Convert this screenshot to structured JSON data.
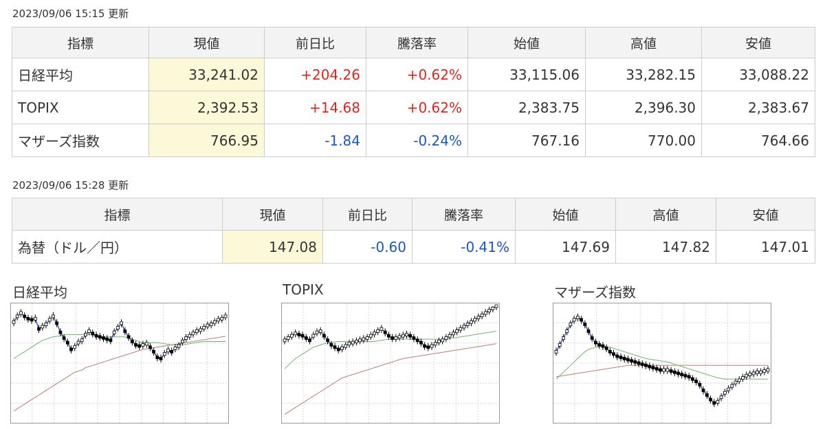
{
  "stock_table": {
    "timestamp": "2023/09/06 15:15 更新",
    "headers": [
      "指標",
      "現値",
      "前日比",
      "騰落率",
      "始値",
      "高値",
      "安値"
    ],
    "rows": [
      {
        "name": "日経平均",
        "current": "33,241.02",
        "change": "+204.26",
        "rate": "+0.62%",
        "open": "33,115.06",
        "high": "33,282.15",
        "low": "33,088.22",
        "trend": "up"
      },
      {
        "name": "TOPIX",
        "current": "2,392.53",
        "change": "+14.68",
        "rate": "+0.62%",
        "open": "2,383.75",
        "high": "2,396.30",
        "low": "2,383.67",
        "trend": "up"
      },
      {
        "name": "マザーズ指数",
        "current": "766.95",
        "change": "-1.84",
        "rate": "-0.24%",
        "open": "767.16",
        "high": "770.00",
        "low": "764.66",
        "trend": "down"
      }
    ]
  },
  "fx_table": {
    "timestamp": "2023/09/06 15:28 更新",
    "headers": [
      "指標",
      "現値",
      "前日比",
      "騰落率",
      "始値",
      "高値",
      "安値"
    ],
    "rows": [
      {
        "name": "為替（ドル／円）",
        "current": "147.08",
        "change": "-0.60",
        "rate": "-0.41%",
        "open": "147.69",
        "high": "147.82",
        "low": "147.01",
        "trend": "down"
      }
    ]
  },
  "charts": {
    "titles": [
      "日経平均",
      "TOPIX",
      "マザーズ指数"
    ]
  },
  "colors": {
    "up": "#e0241b",
    "down": "#1a56c4",
    "link": "#1a56c4",
    "current_bg": "#fbf9d7",
    "ma_short": "#1f3fbf",
    "ma_mid": "#6ab86a",
    "ma_long": "#c07a72"
  },
  "chart_data": [
    {
      "type": "line",
      "title": "日経平均",
      "x": [
        1,
        2,
        3,
        4,
        5,
        6,
        7,
        8,
        9,
        10,
        11,
        12,
        13,
        14,
        15,
        16,
        17,
        18,
        19,
        20,
        21,
        22,
        23,
        24,
        25,
        26,
        27,
        28,
        29,
        30,
        31,
        32,
        33,
        34,
        35,
        36,
        37,
        38,
        39,
        40,
        41,
        42,
        43,
        44,
        45,
        46,
        47,
        48,
        49,
        50,
        51,
        52,
        53,
        54,
        55,
        56,
        57,
        58,
        59,
        60
      ],
      "series": [
        {
          "values": [
            0.86,
            0.91,
            0.94,
            0.91,
            0.89,
            0.88,
            0.89,
            0.8,
            0.82,
            0.84,
            0.88,
            0.91,
            0.85,
            0.77,
            0.72,
            0.68,
            0.62,
            0.64,
            0.68,
            0.7,
            0.75,
            0.78,
            0.76,
            0.74,
            0.73,
            0.72,
            0.71,
            0.7,
            0.77,
            0.81,
            0.85,
            0.78,
            0.73,
            0.69,
            0.66,
            0.65,
            0.66,
            0.67,
            0.64,
            0.6,
            0.55,
            0.54,
            0.58,
            0.61,
            0.6,
            0.63,
            0.65,
            0.69,
            0.72,
            0.74,
            0.76,
            0.78,
            0.79,
            0.81,
            0.83,
            0.84,
            0.86,
            0.88,
            0.89,
            0.91
          ]
        },
        {
          "values": [
            0.54,
            0.56,
            0.58,
            0.6,
            0.62,
            0.64,
            0.66,
            0.68,
            0.7,
            0.71,
            0.72,
            0.73,
            0.735,
            0.74,
            0.745,
            0.75,
            0.75,
            0.75,
            0.75,
            0.75,
            0.75,
            0.75,
            0.745,
            0.74,
            0.735,
            0.73,
            0.73,
            0.73,
            0.73,
            0.73,
            0.73,
            0.73,
            0.72,
            0.71,
            0.7,
            0.69,
            0.68,
            0.68,
            0.68,
            0.68,
            0.68,
            0.675,
            0.67,
            0.665,
            0.66,
            0.66,
            0.66,
            0.66,
            0.665,
            0.67,
            0.675,
            0.68,
            0.685,
            0.69,
            0.69,
            0.69,
            0.69,
            0.69,
            0.69,
            0.69
          ]
        },
        {
          "values": [
            0.08,
            0.1,
            0.12,
            0.14,
            0.16,
            0.18,
            0.2,
            0.22,
            0.24,
            0.26,
            0.28,
            0.3,
            0.32,
            0.34,
            0.36,
            0.38,
            0.4,
            0.42,
            0.43,
            0.44,
            0.46,
            0.47,
            0.48,
            0.49,
            0.5,
            0.51,
            0.52,
            0.53,
            0.54,
            0.55,
            0.56,
            0.57,
            0.58,
            0.59,
            0.6,
            0.61,
            0.62,
            0.625,
            0.63,
            0.635,
            0.64,
            0.645,
            0.65,
            0.655,
            0.66,
            0.665,
            0.67,
            0.675,
            0.68,
            0.685,
            0.69,
            0.695,
            0.7,
            0.705,
            0.71,
            0.715,
            0.72,
            0.725,
            0.73,
            0.735
          ]
        }
      ]
    },
    {
      "type": "line",
      "title": "TOPIX",
      "x": [
        1,
        2,
        3,
        4,
        5,
        6,
        7,
        8,
        9,
        10,
        11,
        12,
        13,
        14,
        15,
        16,
        17,
        18,
        19,
        20,
        21,
        22,
        23,
        24,
        25,
        26,
        27,
        28,
        29,
        30,
        31,
        32,
        33,
        34,
        35,
        36,
        37,
        38,
        39,
        40,
        41,
        42,
        43,
        44,
        45,
        46,
        47,
        48,
        49,
        50,
        51,
        52,
        53,
        54,
        55,
        56,
        57,
        58,
        59,
        60
      ],
      "series": [
        {
          "values": [
            0.7,
            0.72,
            0.74,
            0.76,
            0.75,
            0.74,
            0.72,
            0.7,
            0.74,
            0.77,
            0.78,
            0.74,
            0.7,
            0.66,
            0.64,
            0.62,
            0.63,
            0.65,
            0.67,
            0.68,
            0.69,
            0.7,
            0.71,
            0.72,
            0.74,
            0.76,
            0.78,
            0.8,
            0.77,
            0.74,
            0.72,
            0.72,
            0.73,
            0.74,
            0.75,
            0.74,
            0.72,
            0.7,
            0.68,
            0.65,
            0.64,
            0.65,
            0.67,
            0.69,
            0.7,
            0.72,
            0.74,
            0.76,
            0.78,
            0.8,
            0.82,
            0.84,
            0.86,
            0.88,
            0.9,
            0.92,
            0.94,
            0.96,
            0.98,
            1.0
          ]
        },
        {
          "values": [
            0.45,
            0.48,
            0.51,
            0.54,
            0.56,
            0.58,
            0.6,
            0.62,
            0.64,
            0.65,
            0.66,
            0.67,
            0.675,
            0.68,
            0.685,
            0.69,
            0.69,
            0.69,
            0.69,
            0.69,
            0.69,
            0.69,
            0.69,
            0.69,
            0.69,
            0.69,
            0.695,
            0.7,
            0.705,
            0.71,
            0.71,
            0.71,
            0.71,
            0.71,
            0.71,
            0.71,
            0.71,
            0.71,
            0.71,
            0.71,
            0.71,
            0.71,
            0.71,
            0.71,
            0.71,
            0.71,
            0.715,
            0.72,
            0.725,
            0.73,
            0.735,
            0.74,
            0.745,
            0.75,
            0.755,
            0.76,
            0.765,
            0.77,
            0.775,
            0.78
          ]
        },
        {
          "values": [
            0.05,
            0.07,
            0.09,
            0.11,
            0.13,
            0.15,
            0.17,
            0.19,
            0.21,
            0.23,
            0.25,
            0.27,
            0.29,
            0.31,
            0.33,
            0.35,
            0.37,
            0.38,
            0.39,
            0.4,
            0.41,
            0.42,
            0.43,
            0.44,
            0.45,
            0.46,
            0.47,
            0.48,
            0.49,
            0.5,
            0.51,
            0.52,
            0.53,
            0.54,
            0.545,
            0.55,
            0.555,
            0.56,
            0.565,
            0.57,
            0.575,
            0.58,
            0.585,
            0.59,
            0.595,
            0.6,
            0.605,
            0.61,
            0.615,
            0.62,
            0.625,
            0.63,
            0.635,
            0.64,
            0.645,
            0.65,
            0.655,
            0.66,
            0.665,
            0.67
          ]
        }
      ]
    },
    {
      "type": "line",
      "title": "マザーズ指数",
      "x": [
        1,
        2,
        3,
        4,
        5,
        6,
        7,
        8,
        9,
        10,
        11,
        12,
        13,
        14,
        15,
        16,
        17,
        18,
        19,
        20,
        21,
        22,
        23,
        24,
        25,
        26,
        27,
        28,
        29,
        30,
        31,
        32,
        33,
        34,
        35,
        36,
        37,
        38,
        39,
        40,
        41,
        42,
        43,
        44,
        45,
        46,
        47,
        48,
        49,
        50,
        51,
        52,
        53,
        54,
        55,
        56,
        57,
        58,
        59,
        60
      ],
      "series": [
        {
          "values": [
            0.6,
            0.66,
            0.72,
            0.78,
            0.84,
            0.88,
            0.9,
            0.88,
            0.84,
            0.78,
            0.72,
            0.68,
            0.66,
            0.65,
            0.63,
            0.6,
            0.58,
            0.56,
            0.55,
            0.54,
            0.53,
            0.52,
            0.51,
            0.5,
            0.49,
            0.48,
            0.47,
            0.46,
            0.45,
            0.44,
            0.44,
            0.44,
            0.43,
            0.42,
            0.41,
            0.4,
            0.39,
            0.38,
            0.36,
            0.34,
            0.31,
            0.26,
            0.22,
            0.18,
            0.15,
            0.16,
            0.2,
            0.24,
            0.27,
            0.3,
            0.33,
            0.35,
            0.37,
            0.39,
            0.4,
            0.41,
            0.42,
            0.42,
            0.43,
            0.44
          ]
        },
        {
          "values": [
            0.36,
            0.39,
            0.42,
            0.45,
            0.48,
            0.51,
            0.54,
            0.57,
            0.6,
            0.62,
            0.63,
            0.64,
            0.645,
            0.65,
            0.645,
            0.64,
            0.63,
            0.62,
            0.61,
            0.6,
            0.59,
            0.58,
            0.57,
            0.56,
            0.55,
            0.54,
            0.535,
            0.53,
            0.525,
            0.52,
            0.515,
            0.51,
            0.5,
            0.49,
            0.48,
            0.47,
            0.46,
            0.45,
            0.44,
            0.43,
            0.42,
            0.41,
            0.4,
            0.39,
            0.38,
            0.37,
            0.365,
            0.36,
            0.36,
            0.36,
            0.36,
            0.36,
            0.36,
            0.36,
            0.36,
            0.36,
            0.36,
            0.36,
            0.36,
            0.36
          ]
        },
        {
          "values": [
            0.38,
            0.385,
            0.39,
            0.395,
            0.4,
            0.405,
            0.41,
            0.415,
            0.42,
            0.425,
            0.43,
            0.435,
            0.44,
            0.445,
            0.45,
            0.455,
            0.46,
            0.465,
            0.47,
            0.475,
            0.48,
            0.48,
            0.48,
            0.48,
            0.48,
            0.48,
            0.48,
            0.48,
            0.48,
            0.48,
            0.48,
            0.48,
            0.48,
            0.48,
            0.48,
            0.48,
            0.48,
            0.48,
            0.48,
            0.48,
            0.48,
            0.48,
            0.48,
            0.48,
            0.48,
            0.48,
            0.48,
            0.48,
            0.48,
            0.48,
            0.48,
            0.48,
            0.48,
            0.48,
            0.48,
            0.48,
            0.48,
            0.48,
            0.48,
            0.48
          ]
        }
      ]
    }
  ]
}
